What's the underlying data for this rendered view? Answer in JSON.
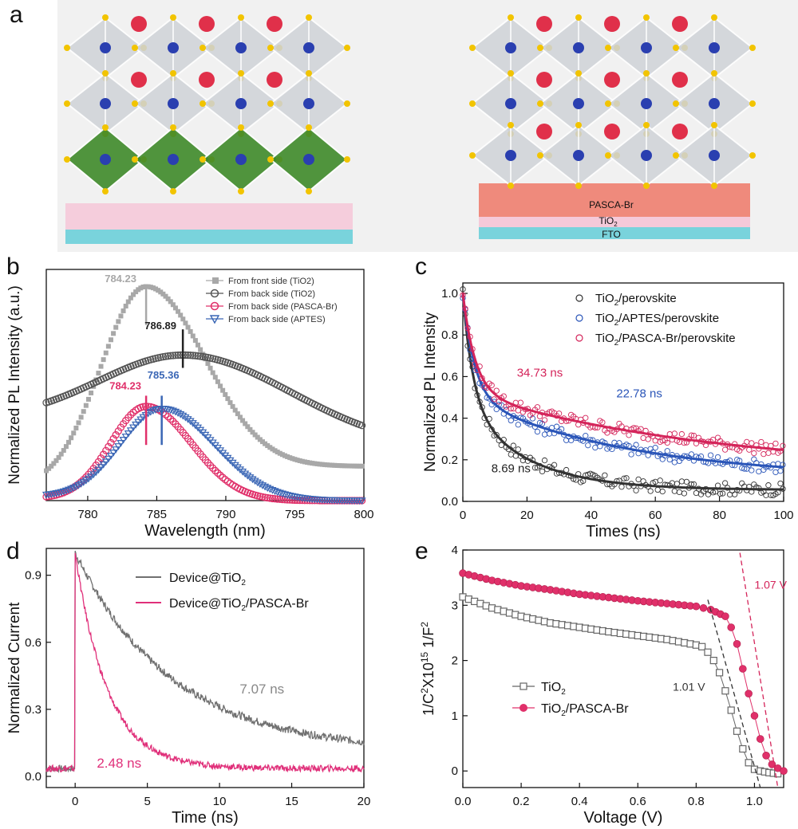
{
  "panels": {
    "a": "a",
    "b": "b",
    "c": "c",
    "d": "d",
    "e": "e"
  },
  "illustration": {
    "labels": {
      "pasca": "PASCA-Br",
      "tio2": "TiO",
      "tio2_sub": "2",
      "fto": "FTO"
    },
    "colors": {
      "octa": "#cfd3d8",
      "octa_green": "#3f8a2a",
      "atom_blue": "#2a3fb0",
      "atom_red": "#e0304a",
      "atom_yellow": "#f2c400",
      "layer_pink": "#f5c9d9",
      "layer_cyan": "#79d3dc",
      "layer_salmon": "#ef8a7c"
    }
  },
  "chart_data": [
    {
      "id": "b",
      "type": "line",
      "ylabel": "Normalized PL Intensity (a.u.)",
      "xlabel": "Wavelength (nm)",
      "xlim": [
        777,
        800
      ],
      "xticks": [
        780,
        785,
        790,
        795,
        800
      ],
      "legend_position": "top-right",
      "series": [
        {
          "name": "From front side (TiO2)",
          "color": "#a8a8a8",
          "marker": "square-filled",
          "peak": 784.23,
          "width": 4.6,
          "base": 0.06,
          "amp": 0.94,
          "tail": 0.16
        },
        {
          "name": "From back side (TiO2)",
          "color": "#555555",
          "marker": "circle-open",
          "peak": 786.89,
          "width": 8.5,
          "base": 0.38,
          "amp": 0.3,
          "tail": 0.24
        },
        {
          "name": "From back side (PASCA-Br)",
          "color": "#e0306a",
          "marker": "circle-open",
          "peak": 784.23,
          "width": 3.6,
          "base": 0.01,
          "amp": 0.43,
          "tail": 0.0
        },
        {
          "name": "From back side (APTES)",
          "color": "#3a66b5",
          "marker": "triangle-down-open",
          "peak": 785.36,
          "width": 4.2,
          "base": 0.02,
          "amp": 0.41,
          "tail": 0.0
        }
      ],
      "annotations": [
        {
          "text": "784.23",
          "x": 784.23,
          "y": 1.02,
          "color": "#a8a8a8",
          "line": [
            0.82,
            1.01
          ]
        },
        {
          "text": "786.89",
          "x": 786.89,
          "y": 0.8,
          "color": "#222222",
          "line": [
            0.62,
            0.8
          ]
        },
        {
          "text": "785.36",
          "x": 785.36,
          "y": 0.57,
          "color": "#3a66b5",
          "line": [
            0.26,
            0.49
          ]
        },
        {
          "text": "784.23",
          "x": 784.23,
          "y": 0.52,
          "color": "#e0306a",
          "line": [
            0.26,
            0.49
          ]
        }
      ]
    },
    {
      "id": "c",
      "type": "scatter",
      "ylabel": "Normalized PL Intensity",
      "xlabel": "Times (ns)",
      "xlim": [
        0,
        100
      ],
      "ylim": [
        0,
        1.05
      ],
      "xticks": [
        0,
        20,
        40,
        60,
        80,
        100
      ],
      "yticks": [
        0,
        0.2,
        0.4,
        0.6,
        0.8,
        1.0
      ],
      "legend_position": "top-right",
      "series": [
        {
          "name": "TiO2/perovskite",
          "color": "#333333",
          "a1": 0.62,
          "t1": 3.2,
          "a2": 0.38,
          "t2": 8.69,
          "floor": 0.1,
          "slow": 0.0028
        },
        {
          "name": "TiO2/APTES/perovskite",
          "color": "#2a55b8",
          "a1": 0.52,
          "t1": 3.6,
          "a2": 0.48,
          "t2": 22.78,
          "floor": 0.2,
          "slow": 0.0029
        },
        {
          "name": "TiO2/PASCA-Br/perovskite",
          "color": "#d4245a",
          "a1": 0.48,
          "t1": 3.8,
          "a2": 0.52,
          "t2": 34.73,
          "floor": 0.26,
          "slow": 0.0027
        }
      ],
      "annotations": [
        {
          "text": "34.73 ns",
          "x": 24,
          "y": 0.6,
          "color": "#d4245a"
        },
        {
          "text": "22.78 ns",
          "x": 55,
          "y": 0.5,
          "color": "#2a55b8"
        },
        {
          "text": "8.69 ns",
          "x": 15,
          "y": 0.14,
          "color": "#222222"
        }
      ]
    },
    {
      "id": "d",
      "type": "line",
      "ylabel": "Normalized Current",
      "xlabel": "Time (ns)",
      "xlim": [
        -2,
        20
      ],
      "ylim": [
        -0.05,
        1.02
      ],
      "xticks": [
        0,
        5,
        10,
        15,
        20
      ],
      "yticks": [
        0.0,
        0.3,
        0.6,
        0.9
      ],
      "legend_position": "top-right",
      "series": [
        {
          "name": "Device@TiO2",
          "color": "#707070",
          "tau": 7.07,
          "base": 0.11
        },
        {
          "name": "Device@TiO2/PASCA-Br",
          "color": "#e0307a",
          "tau": 2.48,
          "base": 0.035
        }
      ],
      "annotations": [
        {
          "text": "7.07 ns",
          "x": 11.4,
          "y": 0.37,
          "color": "#888888"
        },
        {
          "text": "2.48 ns",
          "x": 1.5,
          "y": 0.04,
          "color": "#e0307a"
        }
      ]
    },
    {
      "id": "e",
      "type": "scatter",
      "ylabel": "1/C2X1015 1/F2",
      "xlabel": "Voltage (V)",
      "xlim": [
        0,
        1.1
      ],
      "ylim": [
        -0.3,
        4
      ],
      "xticks": [
        0.0,
        0.2,
        0.4,
        0.6,
        0.8,
        1.0
      ],
      "yticks": [
        0,
        1,
        2,
        3,
        4
      ],
      "legend_position": "bottom-left",
      "series": [
        {
          "name": "TiO2",
          "color": "#666666",
          "marker": "square-open",
          "points": [
            [
              0,
              3.15
            ],
            [
              0.1,
              2.95
            ],
            [
              0.2,
              2.8
            ],
            [
              0.3,
              2.68
            ],
            [
              0.4,
              2.6
            ],
            [
              0.5,
              2.52
            ],
            [
              0.6,
              2.45
            ],
            [
              0.7,
              2.38
            ],
            [
              0.8,
              2.28
            ],
            [
              0.82,
              2.25
            ],
            [
              0.84,
              2.15
            ],
            [
              0.86,
              2.0
            ],
            [
              0.88,
              1.78
            ],
            [
              0.9,
              1.45
            ],
            [
              0.92,
              1.1
            ],
            [
              0.94,
              0.72
            ],
            [
              0.96,
              0.4
            ],
            [
              0.98,
              0.15
            ],
            [
              1.0,
              0.03
            ],
            [
              1.02,
              0.0
            ],
            [
              1.05,
              -0.03
            ],
            [
              1.08,
              -0.05
            ]
          ]
        },
        {
          "name": "TiO2/PASCA-Br",
          "color": "#e0306a",
          "marker": "circle-filled",
          "points": [
            [
              0,
              3.58
            ],
            [
              0.1,
              3.45
            ],
            [
              0.2,
              3.35
            ],
            [
              0.3,
              3.28
            ],
            [
              0.4,
              3.2
            ],
            [
              0.5,
              3.14
            ],
            [
              0.6,
              3.08
            ],
            [
              0.7,
              3.03
            ],
            [
              0.8,
              2.98
            ],
            [
              0.85,
              2.92
            ],
            [
              0.9,
              2.8
            ],
            [
              0.92,
              2.6
            ],
            [
              0.94,
              2.3
            ],
            [
              0.96,
              1.85
            ],
            [
              0.98,
              1.4
            ],
            [
              1.0,
              1.0
            ],
            [
              1.02,
              0.58
            ],
            [
              1.04,
              0.28
            ],
            [
              1.06,
              0.12
            ],
            [
              1.08,
              0.05
            ],
            [
              1.1,
              0.0
            ]
          ]
        }
      ],
      "fit_lines": [
        {
          "series": "TiO2",
          "color": "#333333",
          "from": [
            0.84,
            3.1
          ],
          "to": [
            1.02,
            -0.3
          ]
        },
        {
          "series": "TiO2/PASCA-Br",
          "color": "#d4245a",
          "from": [
            0.95,
            3.95
          ],
          "to": [
            1.08,
            -0.3
          ]
        }
      ],
      "annotations": [
        {
          "text": "1.01 V",
          "x": 0.72,
          "y": 1.45,
          "color": "#333333"
        },
        {
          "text": "1.07 V",
          "x": 1.0,
          "y": 3.3,
          "color": "#d4245a"
        }
      ]
    }
  ]
}
